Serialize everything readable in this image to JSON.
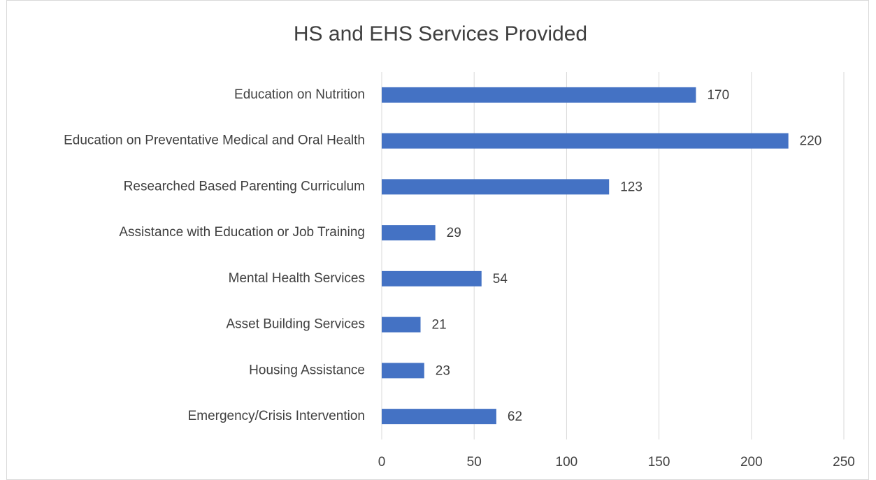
{
  "chart_data": {
    "type": "bar",
    "orientation": "horizontal",
    "title": "HS and EHS Services Provided",
    "categories": [
      "Education on Nutrition",
      "Education on Preventative Medical and Oral Health",
      "Researched Based Parenting Curriculum",
      "Assistance with Education or Job Training",
      "Mental Health Services",
      "Asset Building Services",
      "Housing Assistance",
      "Emergency/Crisis Intervention"
    ],
    "values": [
      170,
      220,
      123,
      29,
      54,
      21,
      23,
      62
    ],
    "color": "#4472c4",
    "xlim": [
      0,
      250
    ],
    "xticks": [
      0,
      50,
      100,
      150,
      200,
      250
    ],
    "grid": true
  }
}
